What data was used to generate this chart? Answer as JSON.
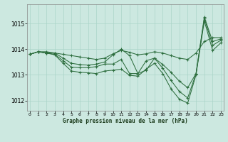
{
  "title": "Graphe pression niveau de la mer (hPa)",
  "background_color": "#cce8e0",
  "grid_color": "#aad4c8",
  "line_color": "#2d6e3e",
  "x_ticks": [
    0,
    1,
    2,
    3,
    4,
    5,
    6,
    7,
    8,
    9,
    10,
    11,
    12,
    13,
    14,
    15,
    16,
    17,
    18,
    19,
    20,
    21,
    22,
    23
  ],
  "y_ticks": [
    1012,
    1013,
    1014,
    1015
  ],
  "ylim": [
    1011.6,
    1015.75
  ],
  "xlim": [
    -0.3,
    23.3
  ],
  "curves": [
    [
      1013.8,
      1013.9,
      1013.9,
      1013.85,
      1013.8,
      1013.75,
      1013.7,
      1013.65,
      1013.6,
      1013.65,
      1013.82,
      1013.95,
      1013.88,
      1013.78,
      1013.82,
      1013.9,
      1013.85,
      1013.75,
      1013.65,
      1013.6,
      1013.85,
      1014.3,
      1014.45,
      1014.45
    ],
    [
      1013.8,
      1013.9,
      1013.85,
      1013.85,
      1013.65,
      1013.45,
      1013.4,
      1013.38,
      1013.42,
      1013.5,
      1013.78,
      1014.0,
      1013.75,
      1013.05,
      1013.55,
      1013.65,
      1013.4,
      1013.1,
      1012.75,
      1012.5,
      1013.05,
      1015.25,
      1014.3,
      1014.4
    ],
    [
      1013.8,
      1013.9,
      1013.85,
      1013.8,
      1013.55,
      1013.3,
      1013.28,
      1013.28,
      1013.32,
      1013.42,
      1013.42,
      1013.6,
      1013.05,
      1013.05,
      1013.18,
      1013.65,
      1013.25,
      1012.78,
      1012.35,
      1012.1,
      1013.05,
      1015.2,
      1014.15,
      1014.35
    ],
    [
      1013.8,
      1013.9,
      1013.85,
      1013.78,
      1013.45,
      1013.15,
      1013.1,
      1013.08,
      1013.05,
      1013.15,
      1013.18,
      1013.22,
      1012.98,
      1012.95,
      1013.22,
      1013.45,
      1013.05,
      1012.45,
      1012.05,
      1011.9,
      1013.0,
      1015.1,
      1013.95,
      1014.25
    ]
  ]
}
